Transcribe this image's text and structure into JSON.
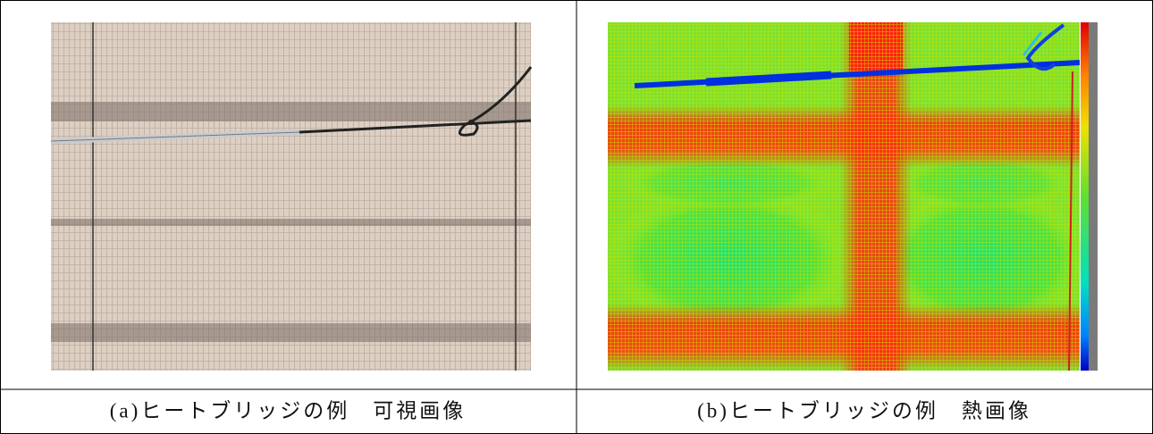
{
  "figure": {
    "panels": [
      {
        "caption": "(a)ヒートブリッジの例　可視画像"
      },
      {
        "caption": "(b)ヒートブリッジの例　熱画像"
      }
    ]
  }
}
